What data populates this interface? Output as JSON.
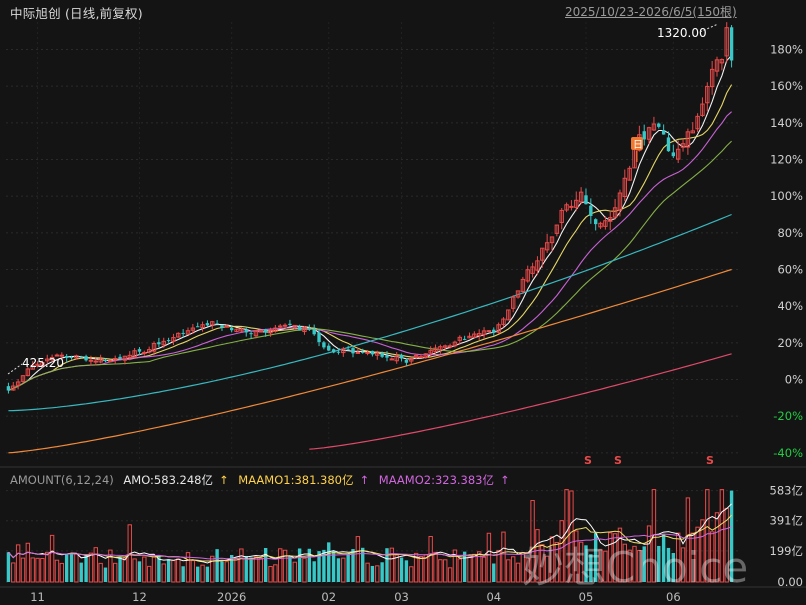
{
  "header": {
    "title": "中际旭创 (日线,前复权)",
    "range": "2025/10/23-2026/6/5(150根)"
  },
  "annotations": {
    "high_label": "1320.00",
    "low_label": "425.20",
    "event_marker": "日",
    "s_markers": [
      "S",
      "S",
      "S"
    ]
  },
  "watermark": "妙想Choice",
  "colors": {
    "background": "#141414",
    "up": "#e84a4a",
    "down": "#38c8c8",
    "ma5": "#ffffff",
    "ma10": "#f0e06a",
    "ma20": "#d266e0",
    "ma30": "#8ab84a",
    "ma60": "#38b8c0",
    "ma120": "#f08a3a",
    "ma250": "#e04a6a",
    "neg_axis": "#22cc44",
    "pos_axis": "#d0d0d0"
  },
  "volume_header": {
    "params": "AMOUNT(6,12,24)",
    "amo": "AMO:583.248亿",
    "maamo1": "MAAMO1:381.380亿",
    "maamo2": "MAAMO2:323.383亿",
    "arrow": "↑"
  },
  "chart_data": [
    {
      "type": "candlestick",
      "title": "中际旭创 (日线,前复权)",
      "y_axis": {
        "labels": [
          "180%",
          "160%",
          "140%",
          "120%",
          "100%",
          "80%",
          "60%",
          "40%",
          "20%",
          "0%",
          "-20%",
          "-40%"
        ],
        "values": [
          180,
          160,
          140,
          120,
          100,
          80,
          60,
          40,
          20,
          0,
          -20,
          -40
        ],
        "ylim": [
          -45,
          195
        ],
        "scale": "percent change"
      },
      "x_axis": {
        "month_labels": [
          "11",
          "12",
          "2026",
          "02",
          "03",
          "04",
          "05",
          "06"
        ],
        "month_bar_index": [
          6,
          27,
          46,
          66,
          81,
          100,
          119,
          137
        ],
        "bars": 150
      },
      "price_extremes": {
        "high": 1320.0,
        "low": 425.2
      },
      "anchors": [
        [
          0,
          -6
        ],
        [
          5,
          8
        ],
        [
          10,
          13
        ],
        [
          20,
          10
        ],
        [
          28,
          16
        ],
        [
          36,
          26
        ],
        [
          42,
          31
        ],
        [
          50,
          25
        ],
        [
          58,
          29
        ],
        [
          62,
          27
        ],
        [
          66,
          16
        ],
        [
          72,
          15
        ],
        [
          78,
          13
        ],
        [
          82,
          10
        ],
        [
          88,
          16
        ],
        [
          93,
          22
        ],
        [
          98,
          26
        ],
        [
          100,
          26
        ],
        [
          103,
          38
        ],
        [
          106,
          55
        ],
        [
          110,
          70
        ],
        [
          114,
          90
        ],
        [
          118,
          102
        ],
        [
          121,
          86
        ],
        [
          125,
          92
        ],
        [
          127,
          108
        ],
        [
          130,
          131
        ],
        [
          134,
          140
        ],
        [
          137,
          120
        ],
        [
          141,
          138
        ],
        [
          143,
          148
        ],
        [
          145,
          170
        ],
        [
          147,
          175
        ],
        [
          148,
          190
        ],
        [
          149,
          174
        ]
      ],
      "moving_averages": [
        {
          "name": "MA5",
          "period": 5
        },
        {
          "name": "MA10",
          "period": 10
        },
        {
          "name": "MA20",
          "period": 20
        },
        {
          "name": "MA30",
          "period": 30
        },
        {
          "name": "MA60",
          "period": 60
        },
        {
          "name": "MA120",
          "period": 120
        },
        {
          "name": "MA250",
          "period": 250
        }
      ],
      "long_ma_end_values": {
        "MA60": 90,
        "MA120": 60,
        "MA250": 14
      },
      "long_ma_start_values": {
        "MA60": -17,
        "MA120": -40,
        "MA250": -38
      }
    },
    {
      "type": "bar",
      "title": "AMOUNT(6,12,24)",
      "units": "亿",
      "y_axis": {
        "labels": [
          "583亿",
          "391亿",
          "199亿",
          "0.00"
        ],
        "values": [
          583,
          391,
          199,
          0
        ],
        "ylim": [
          0,
          600
        ]
      },
      "last_values": {
        "AMO": 583.248,
        "MAAMO1": 381.38,
        "MAAMO2": 323.383
      },
      "series": [
        {
          "name": "AMO"
        },
        {
          "name": "MAAMO1",
          "period": 6
        },
        {
          "name": "MAAMO2",
          "period": 12
        }
      ]
    }
  ]
}
